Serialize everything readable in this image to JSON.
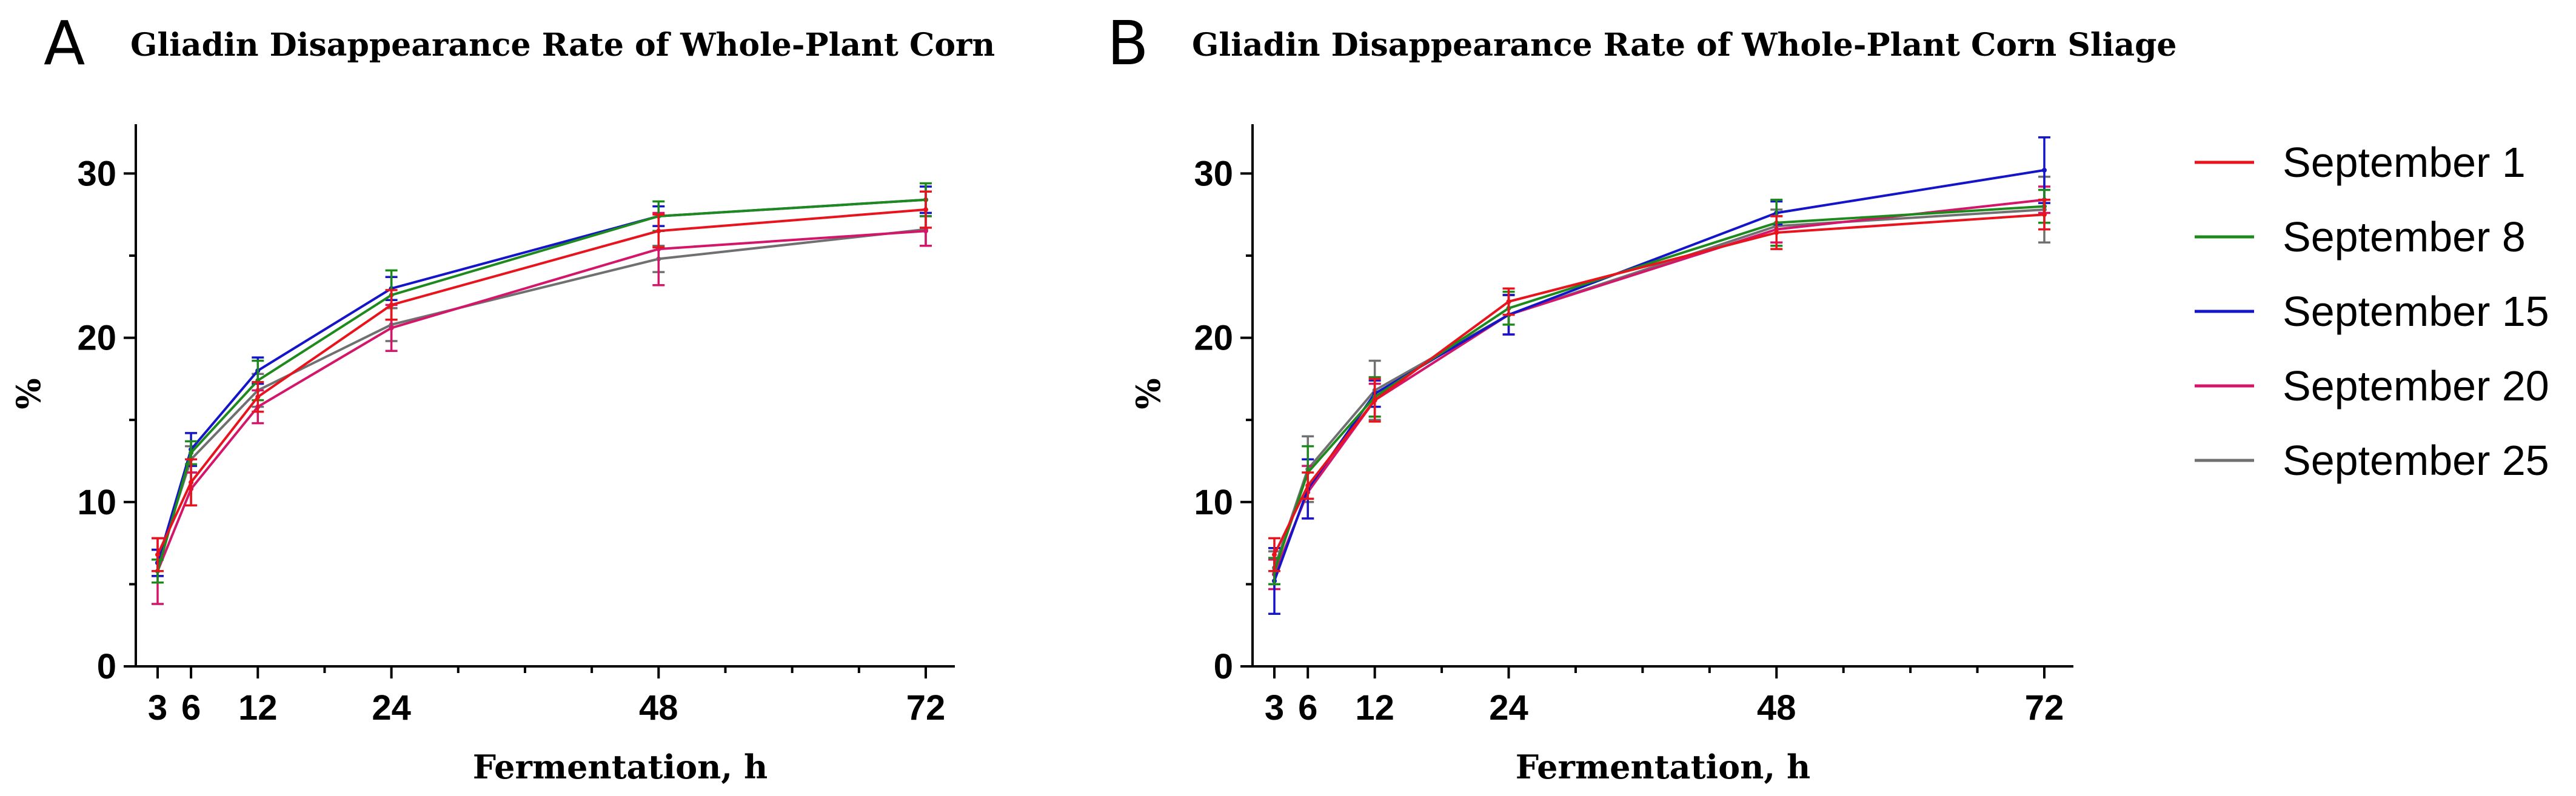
{
  "colors": {
    "September 1": "#e8131c",
    "September 8": "#1e8a1e",
    "September 15": "#1414c8",
    "September 20": "#d4166a",
    "September 25": "#707070"
  },
  "legend": {
    "items": [
      "September 1",
      "September 8",
      "September 15",
      "September 20",
      "September 25"
    ]
  },
  "chart_data": [
    {
      "type": "line",
      "panel_letter": "A",
      "title": "Gliadin Disappearance Rate of Whole-Plant Corn",
      "xlabel": "Fermentation, h",
      "ylabel": "%",
      "x": [
        3,
        6,
        12,
        24,
        48,
        72
      ],
      "xlim": [
        3,
        72
      ],
      "ylim": [
        0,
        33
      ],
      "xticks": [
        3,
        6,
        12,
        24,
        48,
        72
      ],
      "yticks": [
        0,
        10,
        20,
        30
      ],
      "series": [
        {
          "name": "September 1",
          "values": [
            6.8,
            11.2,
            16.4,
            22.0,
            26.5,
            27.8
          ],
          "errors": [
            1.0,
            1.4,
            0.9,
            0.9,
            1.0,
            1.1
          ]
        },
        {
          "name": "September 8",
          "values": [
            5.8,
            13.0,
            17.4,
            22.6,
            27.4,
            28.4
          ],
          "errors": [
            0.7,
            0.7,
            1.2,
            1.5,
            0.9,
            1.0
          ]
        },
        {
          "name": "September 15",
          "values": [
            6.3,
            13.2,
            18.0,
            23.0,
            27.4,
            28.4
          ],
          "errors": [
            0.8,
            1.0,
            0.8,
            0.7,
            0.6,
            0.8
          ]
        },
        {
          "name": "September 20",
          "values": [
            5.8,
            10.8,
            15.8,
            20.6,
            25.4,
            26.5
          ],
          "errors": [
            2.0,
            1.0,
            1.0,
            1.4,
            2.2,
            0.9
          ]
        },
        {
          "name": "September 25",
          "values": [
            6.3,
            12.6,
            16.8,
            20.8,
            24.8,
            26.6
          ],
          "errors": [
            0.8,
            0.8,
            1.0,
            1.0,
            0.8,
            1.0
          ]
        }
      ]
    },
    {
      "type": "line",
      "panel_letter": "B",
      "title": "Gliadin Disappearance Rate of Whole-Plant Corn Sliage",
      "xlabel": "Fermentation, h",
      "ylabel": "%",
      "x": [
        3,
        6,
        12,
        24,
        48,
        72
      ],
      "xlim": [
        3,
        72
      ],
      "ylim": [
        0,
        33
      ],
      "xticks": [
        3,
        6,
        12,
        24,
        48,
        72
      ],
      "yticks": [
        0,
        10,
        20,
        30
      ],
      "series": [
        {
          "name": "September 1",
          "values": [
            6.8,
            11.0,
            16.2,
            22.2,
            26.4,
            27.5
          ],
          "errors": [
            1.0,
            0.8,
            1.3,
            0.8,
            1.0,
            0.9
          ]
        },
        {
          "name": "September 8",
          "values": [
            5.8,
            11.8,
            16.4,
            21.8,
            27.0,
            28.0
          ],
          "errors": [
            0.8,
            1.6,
            1.2,
            1.0,
            1.4,
            1.0
          ]
        },
        {
          "name": "September 15",
          "values": [
            5.2,
            10.8,
            16.6,
            21.4,
            27.6,
            30.2
          ],
          "errors": [
            2.0,
            1.8,
            0.8,
            1.2,
            0.7,
            2.0
          ]
        },
        {
          "name": "September 20",
          "values": [
            5.6,
            10.6,
            16.2,
            21.4,
            26.6,
            28.4
          ],
          "errors": [
            0.9,
            1.6,
            1.0,
            1.2,
            0.8,
            0.8
          ]
        },
        {
          "name": "September 25",
          "values": [
            6.0,
            12.0,
            16.8,
            21.4,
            26.8,
            27.8
          ],
          "errors": [
            1.0,
            2.0,
            1.8,
            1.2,
            1.0,
            2.0
          ]
        }
      ]
    }
  ]
}
